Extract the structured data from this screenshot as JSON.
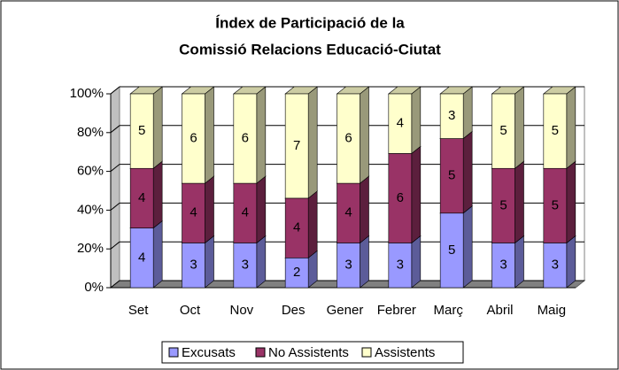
{
  "chart_data": {
    "type": "bar",
    "stacking": "percent",
    "title": [
      "Índex de Participació de la",
      "Comissió Relacions Educació-Ciutat"
    ],
    "categories": [
      "Set",
      "Oct",
      "Nov",
      "Des",
      "Gener",
      "Febrer",
      "Març",
      "Abril",
      "Maig"
    ],
    "series": [
      {
        "name": "Excusats",
        "color": "#9999ff",
        "values": [
          4,
          3,
          3,
          2,
          3,
          3,
          5,
          3,
          3
        ]
      },
      {
        "name": "No Assistents",
        "color": "#993366",
        "values": [
          4,
          4,
          4,
          4,
          4,
          6,
          5,
          5,
          5
        ]
      },
      {
        "name": "Assistents",
        "color": "#ffffcc",
        "values": [
          5,
          6,
          6,
          7,
          6,
          4,
          3,
          5,
          5
        ]
      }
    ],
    "ylim": [
      0,
      100
    ],
    "yticks": [
      {
        "value": 0,
        "label": "0%"
      },
      {
        "value": 20,
        "label": "20%"
      },
      {
        "value": 40,
        "label": "40%"
      },
      {
        "value": 60,
        "label": "60%"
      },
      {
        "value": 80,
        "label": "80%"
      },
      {
        "value": 100,
        "label": "100%"
      }
    ],
    "grid": true,
    "legend": "bottom"
  }
}
